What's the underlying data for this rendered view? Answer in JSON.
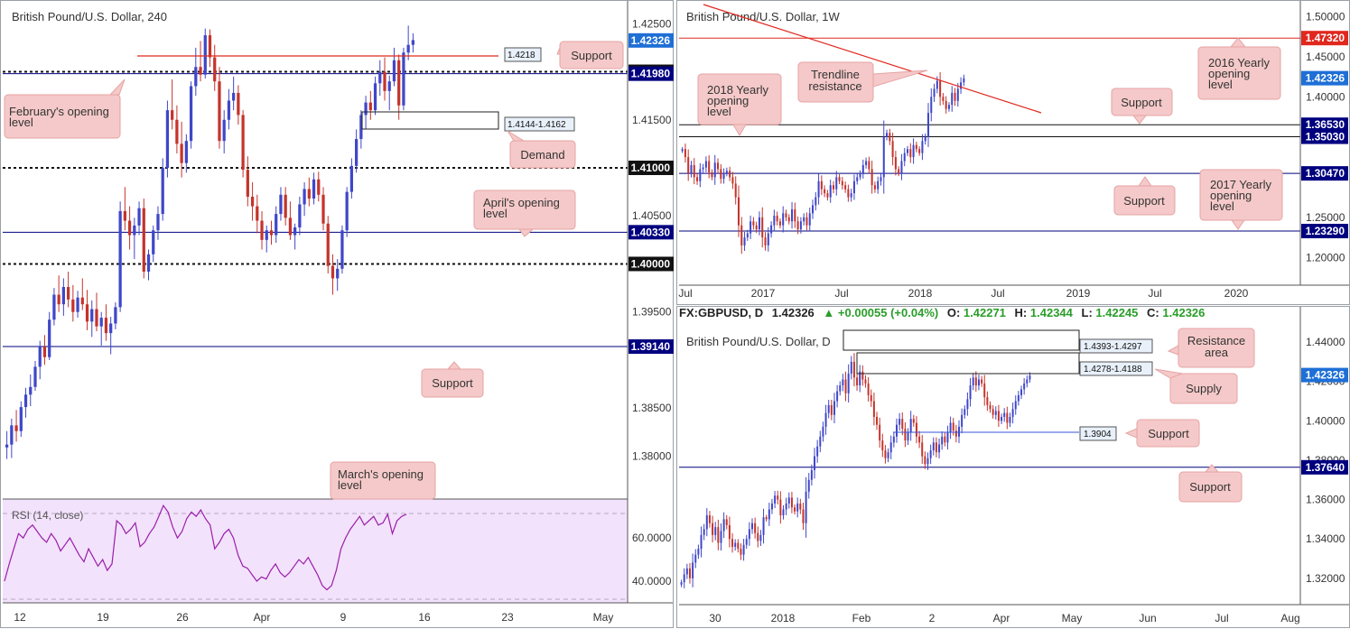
{
  "colors": {
    "up_candle": "#3f47c8",
    "down_candle": "#c4342c",
    "level_line": "#00007f",
    "red_line": "#e0281e",
    "callout_fill": "#f5c9c9",
    "callout_border": "#e6a3a3",
    "rsi_line": "#9a1eaa",
    "rsi_band": "#f2e2fb",
    "price_tag_blue": "#1e6fd6",
    "price_tag_black": "#111111",
    "price_tag_red": "#e0281e",
    "price_tag_navy": "#00007f"
  },
  "chart_data": [
    {
      "id": "h4",
      "type": "candlestick",
      "title": "British Pound/U.S. Dollar, 240",
      "y_ticks": [
        "1.42500",
        "1.41500",
        "1.40500",
        "1.39500",
        "1.38500",
        "1.38000"
      ],
      "x_ticks": [
        "12",
        "19",
        "26",
        "Apr",
        "9",
        "16",
        "23",
        "May"
      ],
      "ylim": [
        1.376,
        1.427
      ],
      "price_tags": [
        {
          "label": "1.42326",
          "value": 1.42326,
          "style": "blue"
        },
        {
          "label": "1.42000",
          "value": 1.42,
          "style": "black"
        },
        {
          "label": "1.41980",
          "value": 1.4198,
          "style": "navy"
        },
        {
          "label": "1.41000",
          "value": 1.41,
          "style": "black"
        },
        {
          "label": "1.40330",
          "value": 1.4033,
          "style": "navy"
        },
        {
          "label": "1.40000",
          "value": 1.4,
          "style": "black"
        },
        {
          "label": "1.39140",
          "value": 1.3914,
          "style": "navy"
        }
      ],
      "levels": [
        {
          "value": 1.42,
          "style": "dotted-black"
        },
        {
          "value": 1.41,
          "style": "dotted-black"
        },
        {
          "value": 1.4,
          "style": "dotted-black"
        },
        {
          "value": 1.4198,
          "style": "navy"
        },
        {
          "value": 1.4033,
          "style": "navy"
        },
        {
          "value": 1.3914,
          "style": "navy"
        }
      ],
      "annotations": {
        "support_level_label": "1.4218",
        "demand_zone_label": "1.4144-1.4162",
        "callouts": [
          "Support",
          "February's opening level",
          "Demand",
          "April's opening level",
          "Support",
          "March's opening level"
        ]
      },
      "candles": [
        [
          1.3809,
          1.3826,
          1.3797,
          1.3812
        ],
        [
          1.3812,
          1.3839,
          1.3798,
          1.3832
        ],
        [
          1.3832,
          1.3848,
          1.3815,
          1.3826
        ],
        [
          1.3826,
          1.3857,
          1.382,
          1.3851
        ],
        [
          1.3851,
          1.3871,
          1.384,
          1.3864
        ],
        [
          1.3864,
          1.3885,
          1.3852,
          1.3872
        ],
        [
          1.3872,
          1.3899,
          1.3868,
          1.3893
        ],
        [
          1.3893,
          1.392,
          1.388,
          1.3914
        ],
        [
          1.3914,
          1.3926,
          1.3895,
          1.3903
        ],
        [
          1.3903,
          1.395,
          1.39,
          1.3942
        ],
        [
          1.3942,
          1.3975,
          1.3936,
          1.3968
        ],
        [
          1.3968,
          1.3988,
          1.395,
          1.3958
        ],
        [
          1.3958,
          1.3985,
          1.3946,
          1.3976
        ],
        [
          1.3976,
          1.3992,
          1.3955,
          1.3963
        ],
        [
          1.3963,
          1.3978,
          1.394,
          1.395
        ],
        [
          1.395,
          1.3972,
          1.3944,
          1.3965
        ],
        [
          1.3965,
          1.3985,
          1.3952,
          1.3958
        ],
        [
          1.3958,
          1.3973,
          1.3931,
          1.394
        ],
        [
          1.394,
          1.3962,
          1.3924,
          1.3953
        ],
        [
          1.3953,
          1.397,
          1.393,
          1.3935
        ],
        [
          1.3935,
          1.395,
          1.3915,
          1.3944
        ],
        [
          1.3944,
          1.3958,
          1.392,
          1.3928
        ],
        [
          1.3928,
          1.3945,
          1.3906,
          1.3938
        ],
        [
          1.3938,
          1.396,
          1.3932,
          1.3955
        ],
        [
          1.3955,
          1.4065,
          1.395,
          1.4055
        ],
        [
          1.4055,
          1.408,
          1.4035,
          1.4045
        ],
        [
          1.4045,
          1.406,
          1.4015,
          1.403
        ],
        [
          1.403,
          1.4048,
          1.4005,
          1.404
        ],
        [
          1.404,
          1.4065,
          1.403,
          1.4058
        ],
        [
          1.4058,
          1.4068,
          1.3985,
          1.3992
        ],
        [
          1.3992,
          1.4015,
          1.3983,
          1.401
        ],
        [
          1.401,
          1.404,
          1.4002,
          1.4035
        ],
        [
          1.4035,
          1.406,
          1.4025,
          1.4052
        ],
        [
          1.4052,
          1.411,
          1.4045,
          1.41
        ],
        [
          1.41,
          1.417,
          1.409,
          1.416
        ],
        [
          1.416,
          1.4192,
          1.414,
          1.415
        ],
        [
          1.415,
          1.4165,
          1.4115,
          1.4125
        ],
        [
          1.4125,
          1.4148,
          1.409,
          1.4105
        ],
        [
          1.4105,
          1.4135,
          1.4095,
          1.4128
        ],
        [
          1.4128,
          1.419,
          1.412,
          1.4185
        ],
        [
          1.4185,
          1.4225,
          1.4175,
          1.4205
        ],
        [
          1.4205,
          1.4232,
          1.419,
          1.4197
        ],
        [
          1.4197,
          1.4245,
          1.4193,
          1.4238
        ],
        [
          1.4238,
          1.4244,
          1.4205,
          1.4215
        ],
        [
          1.4215,
          1.4228,
          1.418,
          1.419
        ],
        [
          1.419,
          1.4205,
          1.412,
          1.4128
        ],
        [
          1.4128,
          1.416,
          1.4115,
          1.415
        ],
        [
          1.415,
          1.4182,
          1.414,
          1.417
        ],
        [
          1.417,
          1.4195,
          1.416,
          1.4178
        ],
        [
          1.4178,
          1.4186,
          1.4145,
          1.4155
        ],
        [
          1.4155,
          1.416,
          1.409,
          1.4098
        ],
        [
          1.4098,
          1.4112,
          1.406,
          1.407
        ],
        [
          1.407,
          1.4085,
          1.4045,
          1.406
        ],
        [
          1.406,
          1.4072,
          1.4032,
          1.4045
        ],
        [
          1.4045,
          1.4055,
          1.4015,
          1.4025
        ],
        [
          1.4025,
          1.404,
          1.4012,
          1.4035
        ],
        [
          1.4035,
          1.4045,
          1.402,
          1.403
        ],
        [
          1.403,
          1.406,
          1.4022,
          1.4052
        ],
        [
          1.4052,
          1.408,
          1.4045,
          1.4072
        ],
        [
          1.4072,
          1.408,
          1.404,
          1.4048
        ],
        [
          1.4048,
          1.4065,
          1.4025,
          1.403
        ],
        [
          1.403,
          1.4042,
          1.4015,
          1.4038
        ],
        [
          1.4038,
          1.407,
          1.403,
          1.4062
        ],
        [
          1.4062,
          1.4085,
          1.405,
          1.4078
        ],
        [
          1.4078,
          1.409,
          1.406,
          1.4068
        ],
        [
          1.4068,
          1.4095,
          1.4062,
          1.4088
        ],
        [
          1.4088,
          1.4096,
          1.4065,
          1.4072
        ],
        [
          1.4072,
          1.408,
          1.4035,
          1.4042
        ],
        [
          1.4042,
          1.405,
          1.399,
          1.3998
        ],
        [
          1.3998,
          1.401,
          1.3968,
          1.3985
        ],
        [
          1.3985,
          1.4005,
          1.3972,
          1.3995
        ],
        [
          1.3995,
          1.404,
          1.399,
          1.4035
        ],
        [
          1.4035,
          1.408,
          1.4028,
          1.4075
        ],
        [
          1.4075,
          1.411,
          1.4068,
          1.4102
        ],
        [
          1.4102,
          1.414,
          1.4095,
          1.413
        ],
        [
          1.413,
          1.416,
          1.412,
          1.4155
        ],
        [
          1.4155,
          1.4175,
          1.414,
          1.4168
        ],
        [
          1.4168,
          1.418,
          1.415,
          1.416
        ],
        [
          1.416,
          1.4195,
          1.4155,
          1.4188
        ],
        [
          1.4188,
          1.4212,
          1.4175,
          1.42
        ],
        [
          1.42,
          1.4215,
          1.417,
          1.418
        ],
        [
          1.418,
          1.4196,
          1.416,
          1.419
        ],
        [
          1.419,
          1.4225,
          1.4185,
          1.4212
        ],
        [
          1.4212,
          1.4218,
          1.415,
          1.4165
        ],
        [
          1.4165,
          1.4225,
          1.416,
          1.422
        ],
        [
          1.422,
          1.4248,
          1.4212,
          1.4228
        ],
        [
          1.4228,
          1.424,
          1.422,
          1.4233
        ]
      ]
    },
    {
      "id": "rsi",
      "type": "line",
      "title": "RSI (14, close)",
      "y_ticks": [
        "60.0000",
        "40.0000"
      ],
      "ylim": [
        30,
        78
      ],
      "band": [
        30,
        70
      ],
      "values": [
        40,
        48,
        55,
        62,
        60,
        64,
        66,
        63,
        60,
        58,
        62,
        59,
        54,
        57,
        60,
        56,
        52,
        49,
        55,
        51,
        47,
        50,
        45,
        48,
        68,
        66,
        62,
        64,
        67,
        56,
        58,
        62,
        65,
        70,
        75,
        72,
        65,
        60,
        63,
        69,
        72,
        70,
        73,
        69,
        66,
        55,
        58,
        62,
        64,
        60,
        52,
        47,
        46,
        43,
        40,
        42,
        41,
        45,
        48,
        44,
        42,
        44,
        47,
        50,
        48,
        51,
        47,
        43,
        38,
        36,
        38,
        45,
        55,
        60,
        64,
        67,
        70,
        66,
        68,
        70,
        66,
        67,
        71,
        62,
        68,
        70,
        71
      ],
      "title_hidden": false
    },
    {
      "id": "w1",
      "type": "candlestick",
      "title": "British Pound/U.S. Dollar, 1W",
      "y_ticks": [
        "1.50000",
        "1.45000",
        "1.40000",
        "1.25000",
        "1.20000"
      ],
      "x_ticks": [
        "Jul",
        "2017",
        "Jul",
        "2018",
        "Jul",
        "2019",
        "Jul",
        "2020"
      ],
      "ylim": [
        1.17,
        1.515
      ],
      "price_tags": [
        {
          "label": "1.47320",
          "value": 1.4732,
          "style": "red"
        },
        {
          "label": "1.42326",
          "value": 1.42326,
          "style": "blue"
        },
        {
          "label": "1.36530",
          "value": 1.3653,
          "style": "navy"
        },
        {
          "label": "1.35030",
          "value": 1.3503,
          "style": "navy"
        },
        {
          "label": "1.30470",
          "value": 1.3047,
          "style": "navy"
        },
        {
          "label": "1.23290",
          "value": 1.2329,
          "style": "navy"
        }
      ],
      "annotations": {
        "callouts": [
          "Trendline resistance",
          "2018 Yearly opening level",
          "Support",
          "2016 Yearly opening level",
          "Support",
          "2017 Yearly opening level"
        ]
      },
      "closes": [
        1.335,
        1.325,
        1.305,
        1.315,
        1.3,
        1.295,
        1.31,
        1.312,
        1.32,
        1.306,
        1.3,
        1.318,
        1.31,
        1.298,
        1.305,
        1.308,
        1.3,
        1.292,
        1.275,
        1.24,
        1.215,
        1.225,
        1.23,
        1.245,
        1.24,
        1.235,
        1.25,
        1.225,
        1.215,
        1.23,
        1.24,
        1.252,
        1.245,
        1.24,
        1.255,
        1.25,
        1.245,
        1.26,
        1.245,
        1.235,
        1.245,
        1.25,
        1.24,
        1.255,
        1.265,
        1.275,
        1.295,
        1.285,
        1.28,
        1.275,
        1.29,
        1.285,
        1.3,
        1.295,
        1.29,
        1.285,
        1.275,
        1.28,
        1.295,
        1.3,
        1.305,
        1.315,
        1.32,
        1.31,
        1.29,
        1.285,
        1.295,
        1.3,
        1.35,
        1.355,
        1.345,
        1.325,
        1.31,
        1.305,
        1.32,
        1.33,
        1.335,
        1.325,
        1.34,
        1.335,
        1.33,
        1.345,
        1.35,
        1.38,
        1.4,
        1.41,
        1.42,
        1.4,
        1.395,
        1.385,
        1.39,
        1.405,
        1.395,
        1.41,
        1.418,
        1.423
      ]
    },
    {
      "id": "d1",
      "type": "candlestick",
      "header": {
        "symbol": "FX:GBPUSD, D",
        "last": "1.42326",
        "change": "▲ +0.00055 (+0.04%)",
        "o_label": "O:",
        "o": "1.42271",
        "h_label": "H:",
        "h": "1.42344",
        "l_label": "L:",
        "l": "1.42245",
        "c_label": "C:",
        "c": "1.42326"
      },
      "title": "British Pound/U.S. Dollar, D",
      "y_ticks": [
        "1.44000",
        "1.42000",
        "1.40000",
        "1.38000",
        "1.36000",
        "1.34000",
        "1.32000"
      ],
      "x_ticks": [
        "30",
        "2018",
        "Feb",
        "2",
        "Apr",
        "May",
        "Jun",
        "Jul",
        "Aug"
      ],
      "ylim": [
        1.308,
        1.446
      ],
      "price_tags": [
        {
          "label": "1.42326",
          "value": 1.42326,
          "style": "blue"
        },
        {
          "label": "1.37640",
          "value": 1.3764,
          "style": "navy"
        }
      ],
      "annotations": {
        "zone_labels": [
          "1.4393-1.4297",
          "1.4278-1.4188",
          "1.3904"
        ],
        "callouts": [
          "Resistance area",
          "Supply",
          "Support",
          "Support"
        ]
      },
      "closes": [
        1.318,
        1.322,
        1.325,
        1.32,
        1.328,
        1.332,
        1.335,
        1.342,
        1.345,
        1.352,
        1.348,
        1.342,
        1.346,
        1.338,
        1.344,
        1.35,
        1.347,
        1.34,
        1.336,
        1.338,
        1.335,
        1.332,
        1.337,
        1.34,
        1.345,
        1.348,
        1.343,
        1.339,
        1.342,
        1.351,
        1.35,
        1.355,
        1.358,
        1.362,
        1.36,
        1.352,
        1.355,
        1.358,
        1.361,
        1.356,
        1.354,
        1.358,
        1.355,
        1.348,
        1.364,
        1.37,
        1.375,
        1.382,
        1.387,
        1.392,
        1.397,
        1.404,
        1.408,
        1.403,
        1.41,
        1.415,
        1.418,
        1.421,
        1.414,
        1.424,
        1.43,
        1.422,
        1.418,
        1.425,
        1.421,
        1.419,
        1.413,
        1.41,
        1.402,
        1.398,
        1.39,
        1.385,
        1.381,
        1.384,
        1.389,
        1.392,
        1.398,
        1.401,
        1.396,
        1.39,
        1.394,
        1.401,
        1.399,
        1.392,
        1.389,
        1.382,
        1.378,
        1.381,
        1.385,
        1.389,
        1.384,
        1.388,
        1.392,
        1.389,
        1.394,
        1.399,
        1.395,
        1.392,
        1.397,
        1.403,
        1.406,
        1.411,
        1.418,
        1.422,
        1.418,
        1.421,
        1.419,
        1.412,
        1.408,
        1.406,
        1.403,
        1.405,
        1.4,
        1.402,
        1.404,
        1.399,
        1.402,
        1.406,
        1.41,
        1.413,
        1.416,
        1.419,
        1.421,
        1.423
      ]
    }
  ]
}
